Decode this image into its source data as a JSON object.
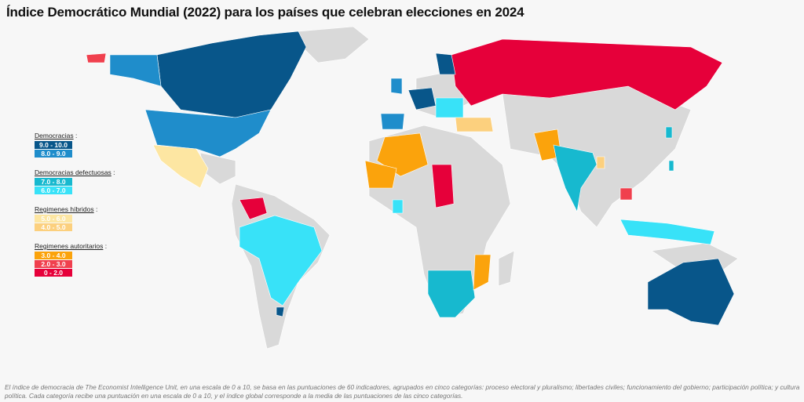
{
  "title": "Índice Democrático Mundial (2022) para los países que celebran elecciones en 2024",
  "legend": {
    "groups": [
      {
        "label": "Democracias",
        "items": [
          {
            "range": "9.0 - 10.0",
            "color": "#08568a"
          },
          {
            "range": "8.0 - 9.0",
            "color": "#1f8dcb"
          }
        ]
      },
      {
        "label": "Democracias defectuosas",
        "items": [
          {
            "range": "7.0 - 8.0",
            "color": "#17b9cf"
          },
          {
            "range": "6.0 - 7.0",
            "color": "#38e2f8"
          }
        ]
      },
      {
        "label": "Regimenes híbridos",
        "items": [
          {
            "range": "5.0 - 6.0",
            "color": "#fde6a2"
          },
          {
            "range": "4.0 - 5.0",
            "color": "#fcd07e"
          }
        ]
      },
      {
        "label": "Regimenes autoritarios",
        "items": [
          {
            "range": "3.0 - 4.0",
            "color": "#fba30c"
          },
          {
            "range": "2.0 - 3.0",
            "color": "#f0404e"
          },
          {
            "range": "0 - 2.0",
            "color": "#e6003a"
          }
        ]
      }
    ],
    "separator": ":"
  },
  "colors": {
    "no_data": "#d9d9d9",
    "background": "#f7f7f7"
  },
  "footer": "El índice de democracia de The Economist Intelligence Unit, en una escala de 0 a 10, se basa en las puntuaciones de 60 indicadores, agrupados en cinco categorías: proceso electoral y pluralismo; libertades civiles; funcionamiento del gobierno; participación política; y cultura política. Cada categoría recibe una puntuación en una escala de 0 a 10, y el índice global corresponde a la media de las puntuaciones de las cinco categorías."
}
